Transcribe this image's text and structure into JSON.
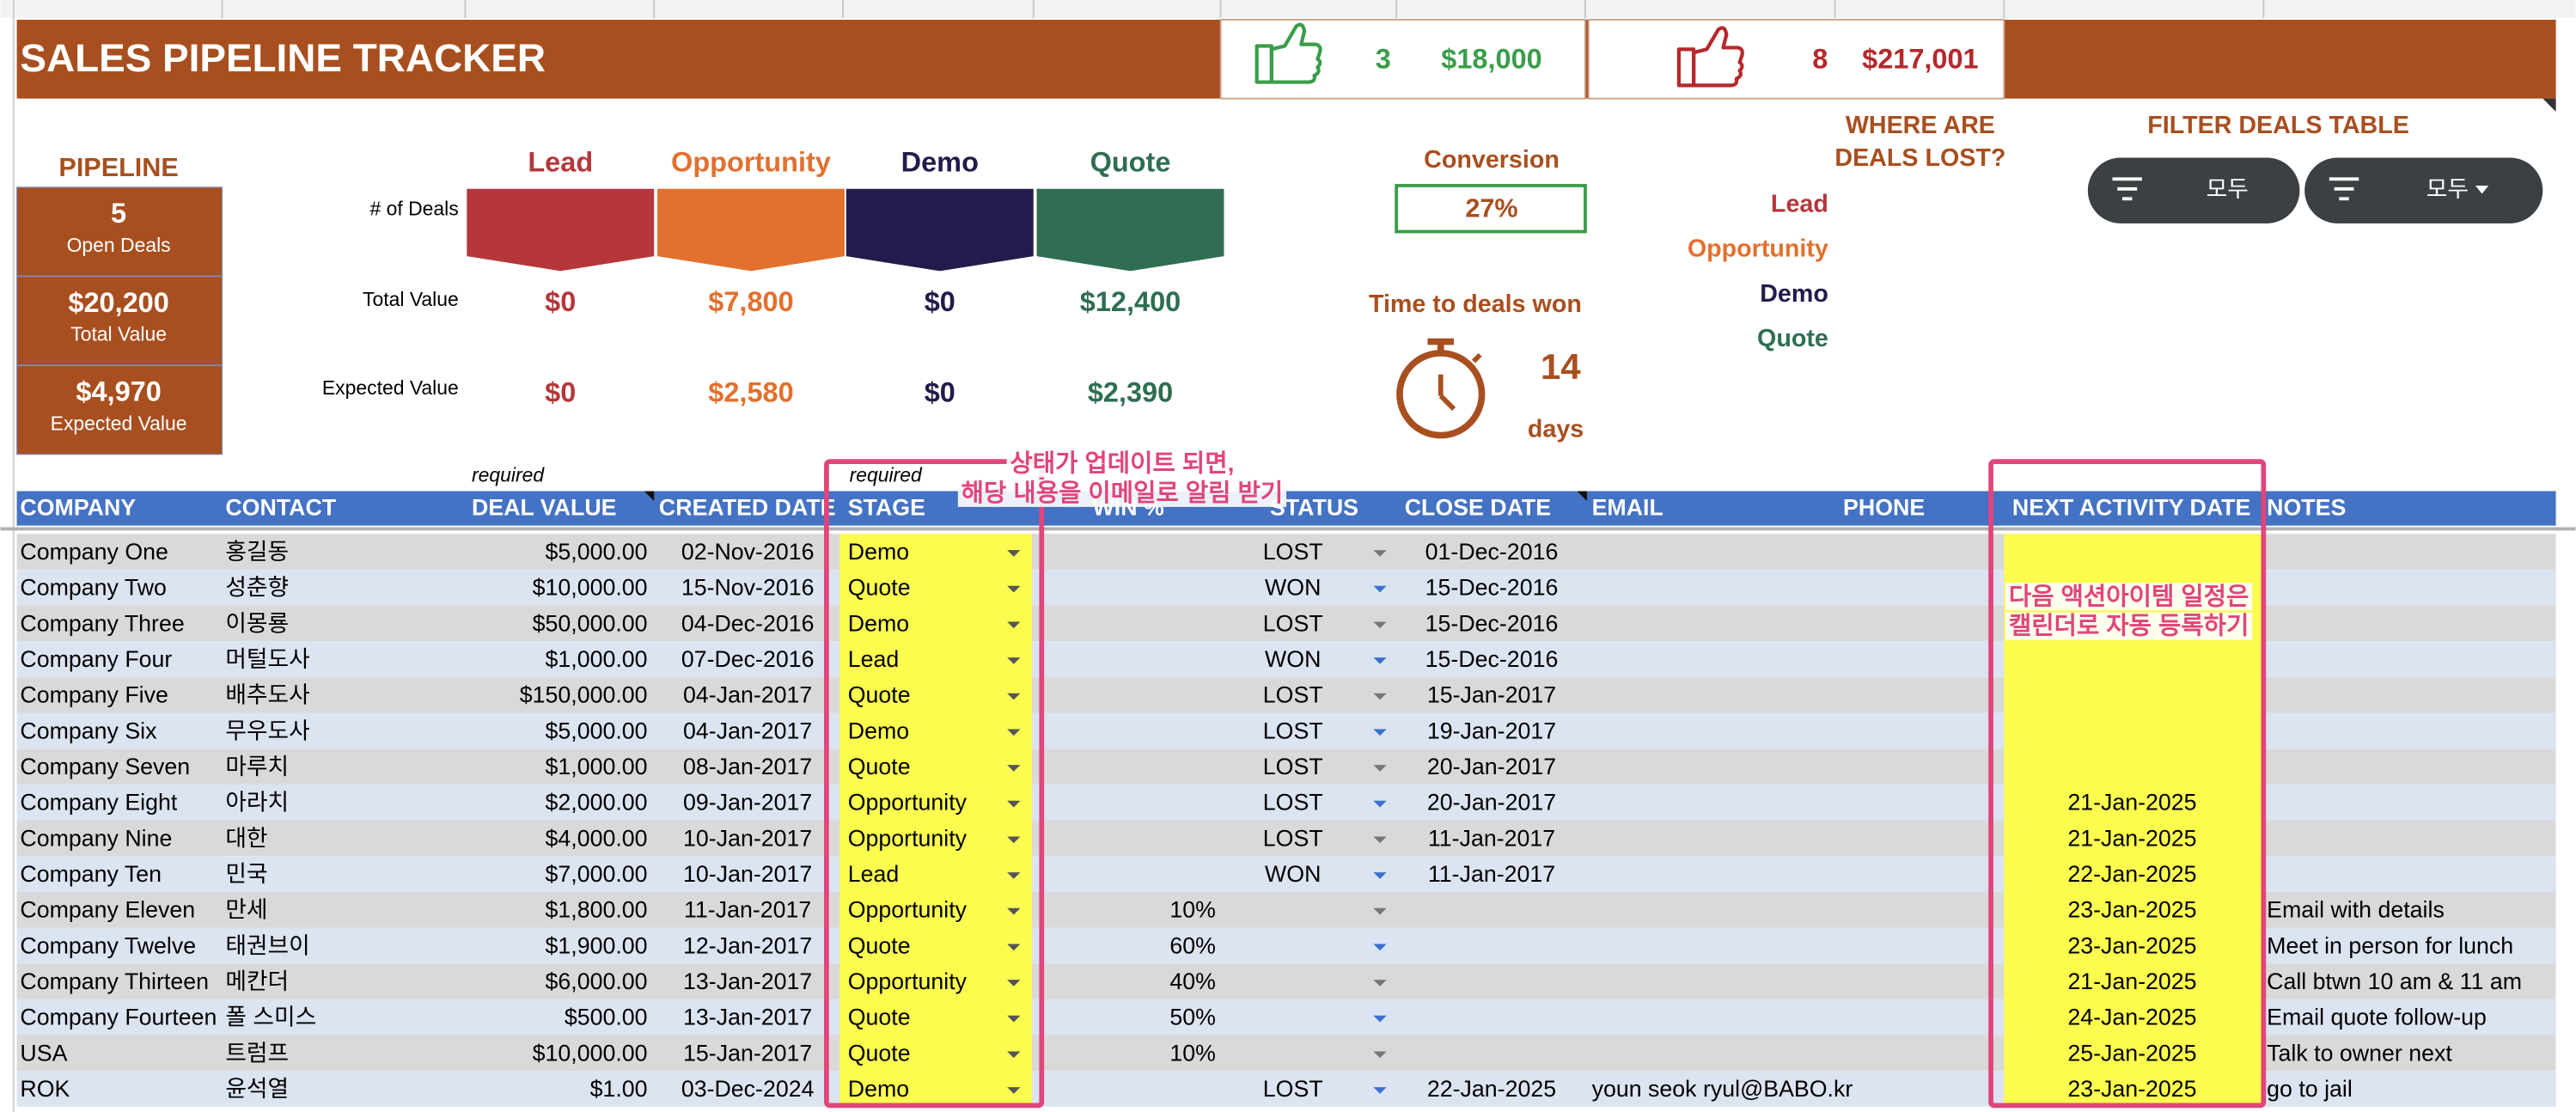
{
  "header": {
    "title": "SALES PIPELINE TRACKER",
    "won": {
      "count": "3",
      "value": "$18,000"
    },
    "lost": {
      "count": "8",
      "value": "$217,001"
    }
  },
  "pipeline": {
    "title": "PIPELINE",
    "boxes": [
      {
        "value": "5",
        "label": "Open Deals"
      },
      {
        "value": "$20,200",
        "label": "Total Value"
      },
      {
        "value": "$4,970",
        "label": "Expected Value"
      }
    ]
  },
  "stages": {
    "row_labels": [
      "# of Deals",
      "Total Value",
      "Expected Value"
    ],
    "items": [
      {
        "name": "Lead",
        "color": "#b5373a",
        "total": "$0",
        "expected": "$0"
      },
      {
        "name": "Opportunity",
        "color": "#e2702e",
        "total": "$7,800",
        "expected": "$2,580"
      },
      {
        "name": "Demo",
        "color": "#211c4b",
        "total": "$0",
        "expected": "$0"
      },
      {
        "name": "Quote",
        "color": "#2f6e52",
        "total": "$12,400",
        "expected": "$2,390"
      }
    ]
  },
  "conversion": {
    "label": "Conversion",
    "value": "27%"
  },
  "time_to_won": {
    "label": "Time to deals won",
    "value": "14",
    "unit": "days"
  },
  "lost_reasons": {
    "title": [
      "WHERE ARE",
      "DEALS LOST?"
    ],
    "items": [
      "Lead",
      "Opportunity",
      "Demo",
      "Quote"
    ]
  },
  "filter": {
    "title": "FILTER DEALS TABLE",
    "buttons": [
      "모두",
      "모두"
    ]
  },
  "table": {
    "required": [
      "required",
      "required"
    ],
    "columns": [
      "COMPANY",
      "CONTACT",
      "DEAL VALUE",
      "CREATED DATE",
      "STAGE",
      "WIN %",
      "STATUS",
      "CLOSE DATE",
      "EMAIL",
      "PHONE",
      "NEXT ACTIVITY DATE",
      "NOTES"
    ],
    "rows": [
      {
        "company": "Company One",
        "contact": "홍길동",
        "deal_value": "$5,000.00",
        "created": "02-Nov-2016",
        "stage": "Demo",
        "status": "LOST",
        "close": "01-Dec-2016"
      },
      {
        "company": "Company Two",
        "contact": "성춘향",
        "deal_value": "$10,000.00",
        "created": "15-Nov-2016",
        "stage": "Quote",
        "status": "WON",
        "close": "15-Dec-2016"
      },
      {
        "company": "Company Three",
        "contact": "이몽룡",
        "deal_value": "$50,000.00",
        "created": "04-Dec-2016",
        "stage": "Demo",
        "status": "LOST",
        "close": "15-Dec-2016"
      },
      {
        "company": "Company Four",
        "contact": "머털도사",
        "deal_value": "$1,000.00",
        "created": "07-Dec-2016",
        "stage": "Lead",
        "status": "WON",
        "close": "15-Dec-2016"
      },
      {
        "company": "Company Five",
        "contact": "배추도사",
        "deal_value": "$150,000.00",
        "created": "04-Jan-2017",
        "stage": "Quote",
        "status": "LOST",
        "close": "15-Jan-2017"
      },
      {
        "company": "Company Six",
        "contact": "무우도사",
        "deal_value": "$5,000.00",
        "created": "04-Jan-2017",
        "stage": "Demo",
        "status": "LOST",
        "close": "19-Jan-2017"
      },
      {
        "company": "Company Seven",
        "contact": "마루치",
        "deal_value": "$1,000.00",
        "created": "08-Jan-2017",
        "stage": "Quote",
        "status": "LOST",
        "close": "20-Jan-2017"
      },
      {
        "company": "Company Eight",
        "contact": "아라치",
        "deal_value": "$2,000.00",
        "created": "09-Jan-2017",
        "stage": "Opportunity",
        "status": "LOST",
        "close": "20-Jan-2017",
        "next": "21-Jan-2025"
      },
      {
        "company": "Company Nine",
        "contact": "대한",
        "deal_value": "$4,000.00",
        "created": "10-Jan-2017",
        "stage": "Opportunity",
        "status": "LOST",
        "close": "11-Jan-2017",
        "next": "21-Jan-2025"
      },
      {
        "company": "Company Ten",
        "contact": "민국",
        "deal_value": "$7,000.00",
        "created": "10-Jan-2017",
        "stage": "Lead",
        "status": "WON",
        "close": "11-Jan-2017",
        "next": "22-Jan-2025"
      },
      {
        "company": "Company Eleven",
        "contact": "만세",
        "deal_value": "$1,800.00",
        "created": "11-Jan-2017",
        "stage": "Opportunity",
        "win": "10%",
        "next": "23-Jan-2025",
        "notes": "Email with details"
      },
      {
        "company": "Company Twelve",
        "contact": "태권브이",
        "deal_value": "$1,900.00",
        "created": "12-Jan-2017",
        "stage": "Quote",
        "win": "60%",
        "next": "23-Jan-2025",
        "notes": "Meet in person for lunch"
      },
      {
        "company": "Company Thirteen",
        "contact": "메칸더",
        "deal_value": "$6,000.00",
        "created": "13-Jan-2017",
        "stage": "Opportunity",
        "win": "40%",
        "next": "21-Jan-2025",
        "notes": "Call btwn 10 am & 11 am"
      },
      {
        "company": "Company Fourteen",
        "contact": "폴 스미스",
        "deal_value": "$500.00",
        "created": "13-Jan-2017",
        "stage": "Quote",
        "win": "50%",
        "next": "24-Jan-2025",
        "notes": "Email quote follow-up"
      },
      {
        "company": "USA",
        "contact": "트럼프",
        "deal_value": "$10,000.00",
        "created": "15-Jan-2017",
        "stage": "Quote",
        "win": "10%",
        "next": "25-Jan-2025",
        "notes": "Talk to owner next"
      },
      {
        "company": "ROK",
        "contact": "윤석열",
        "deal_value": "$1.00",
        "created": "03-Dec-2024",
        "stage": "Demo",
        "status": "LOST",
        "close": "22-Jan-2025",
        "email": "youn seok ryul@BABO.kr",
        "next": "23-Jan-2025",
        "notes": "go to jail"
      }
    ]
  },
  "annotations": [
    [
      "상태가 업데이트 되면,",
      "해당 내용을 이메일로 알림 받기"
    ],
    [
      "다음 액션아이템 일정은",
      "캘린더로 자동 등록하기"
    ]
  ]
}
